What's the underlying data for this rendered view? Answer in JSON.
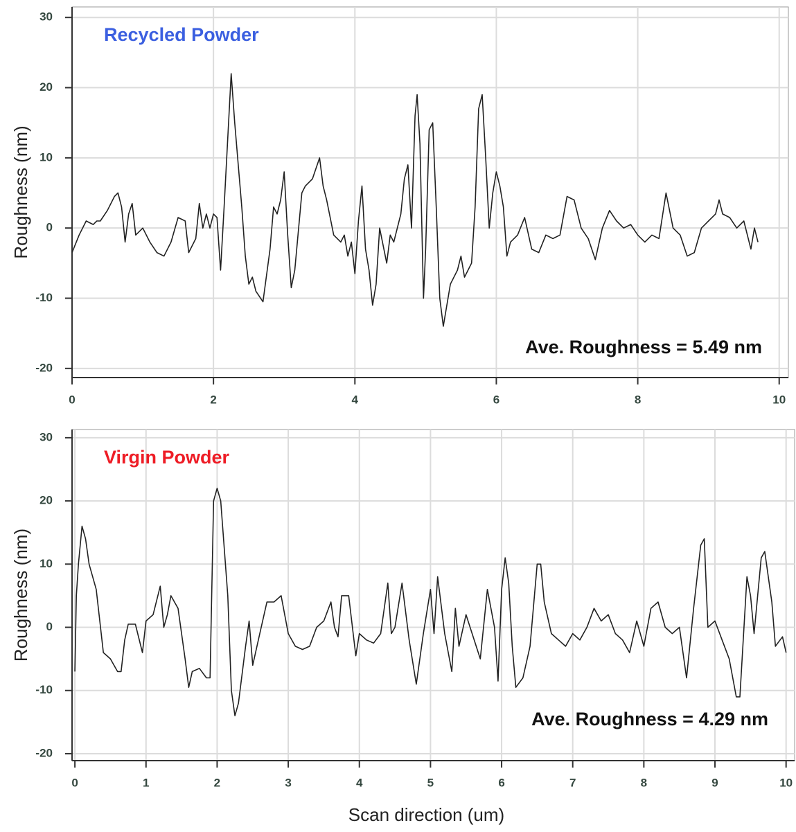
{
  "chart_data": [
    {
      "type": "line",
      "title": "Recycled Powder",
      "title_color": "#3b5fe0",
      "annotation": "Ave. Roughness =  5.49 nm",
      "ylabel": "Roughness (nm)",
      "xlim": [
        0,
        10.13
      ],
      "ylim": [
        -21.3,
        31.5
      ],
      "xticks": [
        0,
        2,
        4,
        6,
        8,
        10
      ],
      "yticks": [
        -20,
        -10,
        0,
        10,
        20,
        30
      ],
      "grid": true,
      "x": [
        0,
        0.1,
        0.2,
        0.3,
        0.35,
        0.4,
        0.5,
        0.6,
        0.65,
        0.7,
        0.75,
        0.8,
        0.85,
        0.9,
        1.0,
        1.1,
        1.2,
        1.3,
        1.4,
        1.5,
        1.6,
        1.65,
        1.75,
        1.8,
        1.85,
        1.9,
        1.95,
        2.0,
        2.05,
        2.1,
        2.15,
        2.25,
        2.3,
        2.4,
        2.45,
        2.5,
        2.55,
        2.6,
        2.7,
        2.8,
        2.85,
        2.9,
        2.95,
        3.0,
        3.05,
        3.1,
        3.15,
        3.25,
        3.3,
        3.4,
        3.5,
        3.55,
        3.6,
        3.7,
        3.8,
        3.85,
        3.9,
        3.95,
        4.0,
        4.05,
        4.1,
        4.15,
        4.2,
        4.25,
        4.3,
        4.35,
        4.45,
        4.5,
        4.55,
        4.6,
        4.65,
        4.7,
        4.75,
        4.8,
        4.85,
        4.88,
        4.92,
        4.97,
        5.0,
        5.05,
        5.1,
        5.15,
        5.2,
        5.25,
        5.3,
        5.35,
        5.45,
        5.5,
        5.55,
        5.65,
        5.7,
        5.75,
        5.8,
        5.85,
        5.9,
        5.95,
        6.0,
        6.05,
        6.1,
        6.15,
        6.2,
        6.3,
        6.4,
        6.5,
        6.6,
        6.7,
        6.8,
        6.9,
        7.0,
        7.1,
        7.2,
        7.3,
        7.4,
        7.5,
        7.6,
        7.7,
        7.8,
        7.9,
        8.0,
        8.1,
        8.2,
        8.3,
        8.4,
        8.5,
        8.6,
        8.7,
        8.8,
        8.9,
        9.0,
        9.1,
        9.15,
        9.2,
        9.3,
        9.4,
        9.5,
        9.6,
        9.65,
        9.7
      ],
      "series": [
        {
          "color": "#222222",
          "values": [
            -3.5,
            -1,
            1,
            0.5,
            1,
            1,
            2.5,
            4.5,
            5,
            3,
            -2,
            2,
            3.5,
            -1,
            0,
            -2,
            -3.5,
            -4,
            -2,
            1.5,
            1,
            -3.5,
            -1.5,
            3.5,
            0,
            2,
            0,
            2,
            1.5,
            -6,
            3,
            22,
            15,
            3,
            -4,
            -8,
            -7,
            -9,
            -10.5,
            -3,
            3,
            2,
            4,
            8,
            -1,
            -8.5,
            -6,
            5,
            6,
            7,
            10,
            6,
            4,
            -1,
            -2,
            -1,
            -4,
            -2,
            -6.5,
            1,
            6,
            -3,
            -6,
            -11,
            -8,
            0,
            -5,
            -1,
            -2,
            0,
            2,
            7,
            9,
            0,
            16,
            19,
            12,
            -10,
            -3,
            14,
            15,
            3,
            -10,
            -14,
            -11,
            -8,
            -6,
            -4,
            -7,
            -5,
            3,
            17,
            19,
            10,
            0,
            5,
            8,
            6,
            3,
            -4,
            -2,
            -1,
            1.5,
            -3,
            -3.5,
            -1,
            -1.5,
            -1,
            4.5,
            4,
            0,
            -1.5,
            -4.5,
            0,
            2.5,
            1,
            0,
            0.5,
            -1,
            -2,
            -1,
            -1.5,
            5,
            0,
            -1,
            -4,
            -3.5,
            0,
            1,
            2,
            4,
            2,
            1.5,
            0,
            1,
            -3,
            0,
            -2
          ]
        }
      ]
    },
    {
      "type": "line",
      "title": "Virgin Powder",
      "title_color": "#ee1c25",
      "annotation": "Ave. Roughness =  4.29 nm",
      "ylabel": "Roughness (nm)",
      "xlabel": "Scan direction (um)",
      "xlim": [
        -0.04,
        10.12
      ],
      "ylim": [
        -21.1,
        31.3
      ],
      "xticks": [
        0,
        1,
        2,
        3,
        4,
        5,
        6,
        7,
        8,
        9,
        10
      ],
      "yticks": [
        -20,
        -10,
        0,
        10,
        20,
        30
      ],
      "grid": true,
      "x": [
        0,
        0.02,
        0.05,
        0.1,
        0.15,
        0.2,
        0.3,
        0.4,
        0.5,
        0.6,
        0.65,
        0.7,
        0.75,
        0.85,
        0.95,
        1.0,
        1.1,
        1.2,
        1.25,
        1.3,
        1.35,
        1.45,
        1.55,
        1.6,
        1.65,
        1.75,
        1.85,
        1.9,
        1.95,
        2.0,
        2.05,
        2.15,
        2.2,
        2.25,
        2.3,
        2.4,
        2.45,
        2.5,
        2.6,
        2.7,
        2.8,
        2.9,
        3.0,
        3.1,
        3.2,
        3.3,
        3.4,
        3.5,
        3.6,
        3.65,
        3.7,
        3.75,
        3.85,
        3.95,
        4.0,
        4.1,
        4.2,
        4.3,
        4.4,
        4.45,
        4.5,
        4.6,
        4.7,
        4.8,
        4.9,
        5.0,
        5.05,
        5.1,
        5.2,
        5.3,
        5.35,
        5.4,
        5.5,
        5.6,
        5.7,
        5.8,
        5.9,
        5.95,
        6.0,
        6.05,
        6.1,
        6.15,
        6.2,
        6.3,
        6.4,
        6.5,
        6.55,
        6.6,
        6.7,
        6.8,
        6.9,
        7.0,
        7.1,
        7.2,
        7.3,
        7.4,
        7.5,
        7.6,
        7.7,
        7.8,
        7.9,
        8.0,
        8.1,
        8.2,
        8.3,
        8.4,
        8.5,
        8.6,
        8.7,
        8.8,
        8.85,
        8.9,
        9.0,
        9.1,
        9.2,
        9.3,
        9.35,
        9.45,
        9.5,
        9.55,
        9.65,
        9.7,
        9.8,
        9.85,
        9.95,
        10.0
      ],
      "series": [
        {
          "color": "#222222",
          "values": [
            -7,
            5,
            10,
            16,
            14,
            10,
            6,
            -4,
            -5,
            -7,
            -7,
            -2,
            0.5,
            0.5,
            -4,
            1,
            2,
            6.5,
            0,
            2,
            5,
            3,
            -5,
            -9.5,
            -7,
            -6.5,
            -8,
            -8,
            20,
            22,
            20,
            5,
            -10,
            -14,
            -12,
            -3,
            1,
            -6,
            -1,
            4,
            4,
            5,
            -1,
            -3,
            -3.5,
            -3,
            0,
            1,
            4,
            0,
            -1.5,
            5,
            5,
            -4.5,
            -1,
            -2,
            -2.5,
            -1,
            7,
            -1,
            0,
            7,
            -2,
            -9,
            -1,
            6,
            -1,
            8,
            -1,
            -7,
            3,
            -3,
            2,
            -1.5,
            -5,
            6,
            0,
            -8.5,
            6,
            11,
            7,
            -3,
            -9.5,
            -8,
            -3,
            10,
            10,
            4,
            -1,
            -2,
            -3,
            -1,
            -2,
            0,
            3,
            1,
            2,
            -1,
            -2,
            -4,
            1,
            -3,
            3,
            4,
            0,
            -1,
            0,
            -8,
            3,
            13,
            14,
            0,
            1,
            -2,
            -5,
            -11,
            -11,
            8,
            5,
            -1,
            11,
            12,
            4,
            -3,
            -1.5,
            -4
          ]
        }
      ]
    }
  ]
}
